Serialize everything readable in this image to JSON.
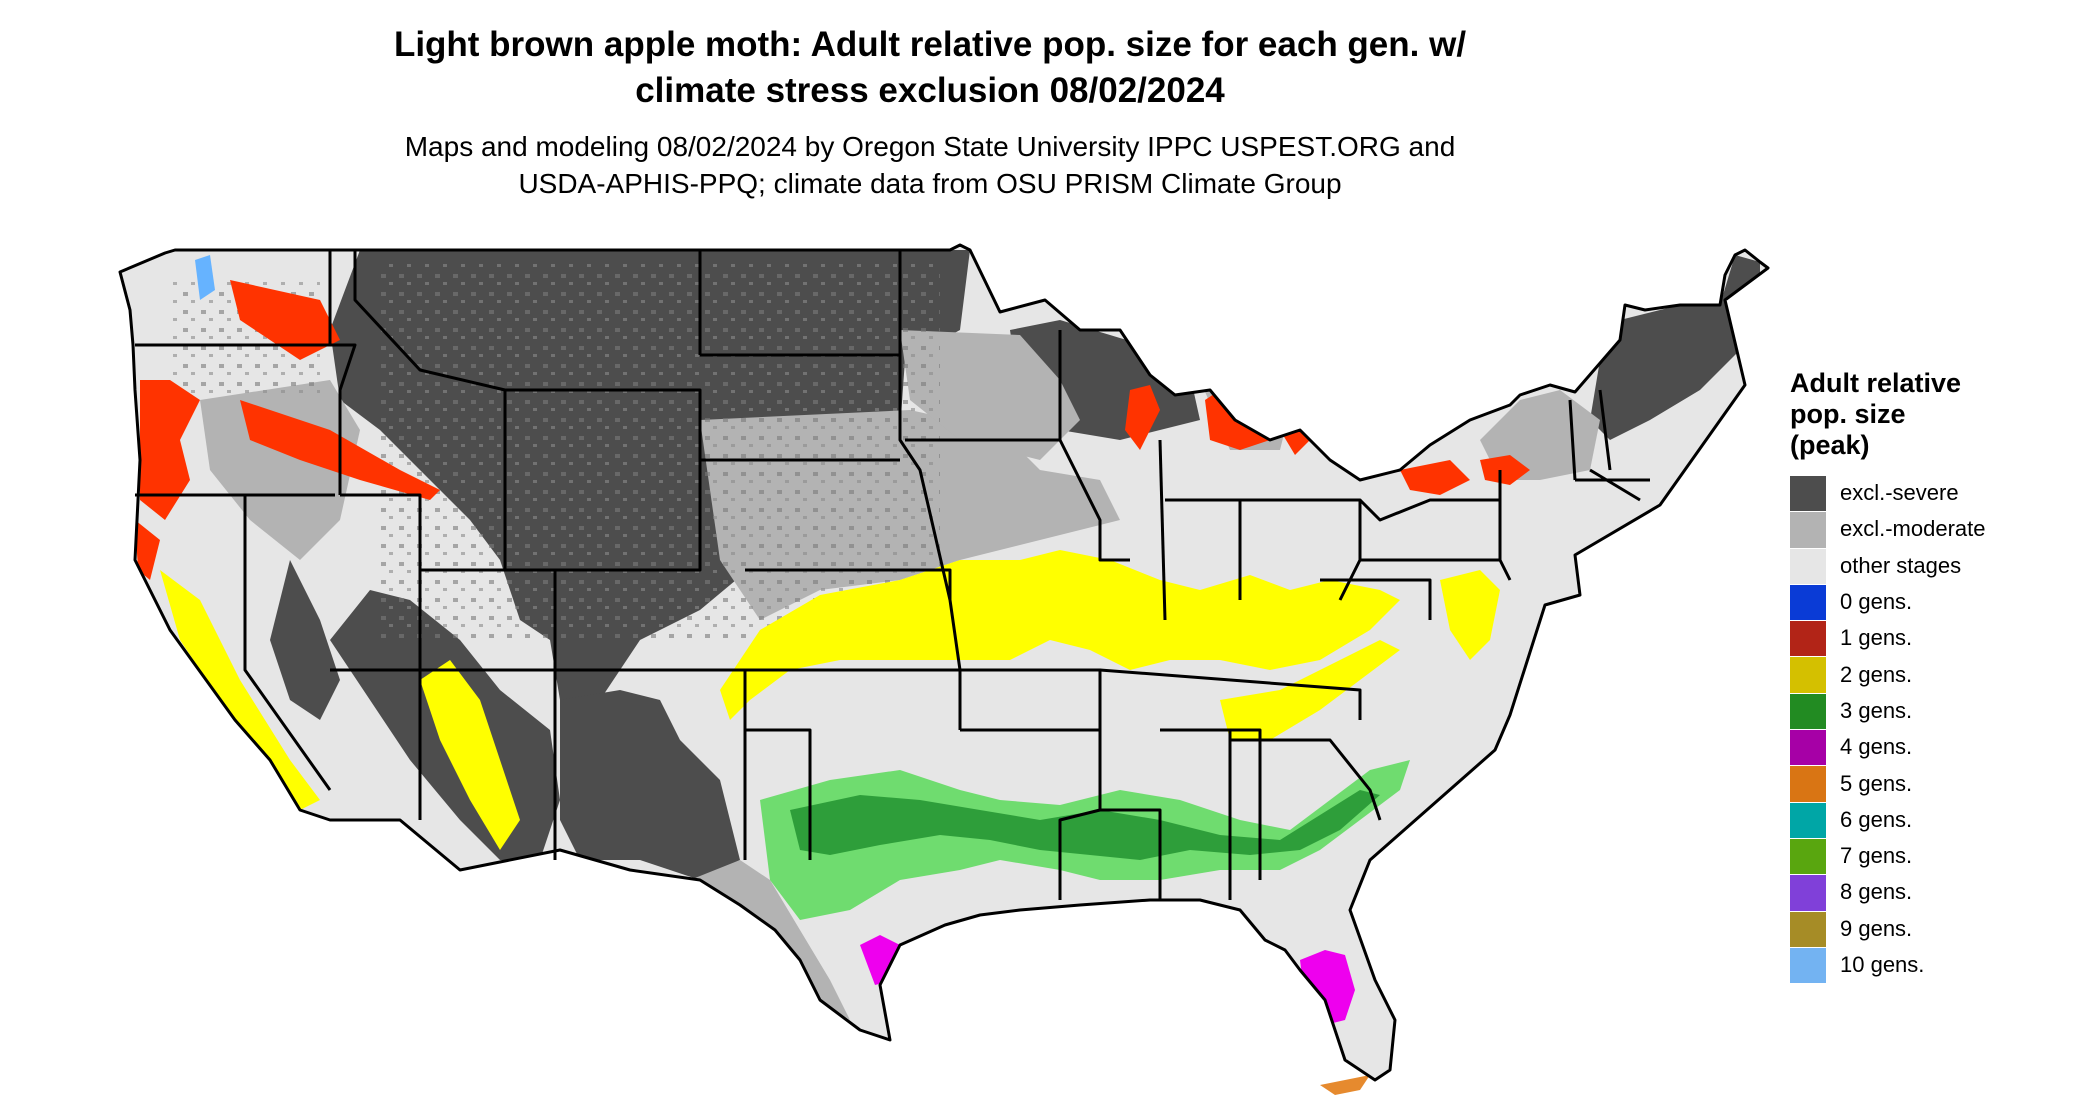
{
  "header": {
    "title_line1": "Light brown apple moth: Adult relative pop. size for each gen. w/",
    "title_line2": "climate stress exclusion 08/02/2024",
    "subtitle_line1": "Maps and modeling 08/02/2024 by Oregon State University IPPC USPEST.ORG and",
    "subtitle_line2": "USDA-APHIS-PPQ; climate data from OSU PRISM Climate Group"
  },
  "legend": {
    "title_line1": "Adult relative",
    "title_line2": "pop. size",
    "title_line3": "(peak)",
    "items": [
      {
        "label": "excl.-severe",
        "color": "#4d4d4d"
      },
      {
        "label": "excl.-moderate",
        "color": "#b3b3b3"
      },
      {
        "label": "other stages",
        "color": "#e6e6e6"
      },
      {
        "label": "0 gens.",
        "color": "#0a3bd6"
      },
      {
        "label": "1 gens.",
        "color": "#b22417"
      },
      {
        "label": "2 gens.",
        "color": "#d4c000"
      },
      {
        "label": "3 gens.",
        "color": "#228b22"
      },
      {
        "label": "4 gens.",
        "color": "#a600a6"
      },
      {
        "label": "5 gens.",
        "color": "#d97514"
      },
      {
        "label": "6 gens.",
        "color": "#00a6a6"
      },
      {
        "label": "7 gens.",
        "color": "#59a60f"
      },
      {
        "label": "8 gens.",
        "color": "#8040d9"
      },
      {
        "label": "9 gens.",
        "color": "#a68c26"
      },
      {
        "label": "10 gens.",
        "color": "#73b3f2"
      }
    ]
  },
  "map_colors": {
    "background_land": "#e6e6e6",
    "severe": "#4d4d4d",
    "moderate": "#b3b3b3",
    "one_gen_bright": "#ff3300",
    "two_gen_bright": "#ffff00",
    "three_gen_light": "#6fdc6f",
    "three_gen": "#3cb043",
    "four_gen_bright": "#ee00ee",
    "five_gen": "#e68a2e",
    "zero_gen": "#66b3ff",
    "border": "#000000"
  }
}
